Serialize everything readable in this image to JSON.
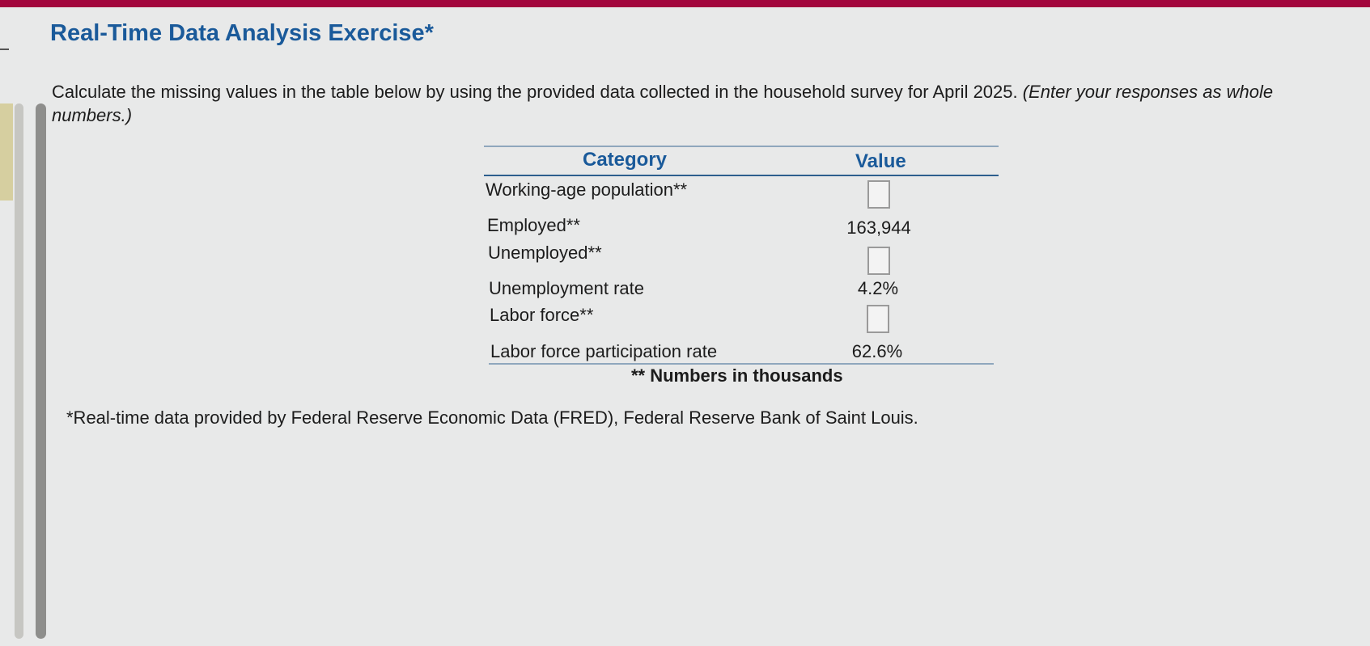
{
  "header": {
    "title": "Real-Time Data Analysis Exercise*"
  },
  "instructions": {
    "text": "Calculate the missing values in the table below by using the provided data collected in the household survey for April 2025. ",
    "italic_text": "(Enter your responses as whole numbers.)"
  },
  "table": {
    "headers": {
      "category": "Category",
      "value": "Value"
    },
    "rows": [
      {
        "label": "Working-age population**",
        "value": ""
      },
      {
        "label": "Employed**",
        "value": "163,944"
      },
      {
        "label": "Unemployed**",
        "value": ""
      },
      {
        "label": "Unemployment rate",
        "value": "4.2%"
      },
      {
        "label": "Labor force**",
        "value": ""
      },
      {
        "label": "Labor force participation rate",
        "value": "62.6%"
      }
    ],
    "footnote": "** Numbers in thousands"
  },
  "source_note": "*Real-time data provided by Federal Reserve Economic Data (FRED), Federal Reserve Bank of Saint Louis.",
  "colors": {
    "top_bar": "#a3063d",
    "title": "#1a5a9a",
    "header_rule": "#2d5f8e",
    "table_rule": "#8fa7bd",
    "page_background": "#e8e9e9"
  }
}
